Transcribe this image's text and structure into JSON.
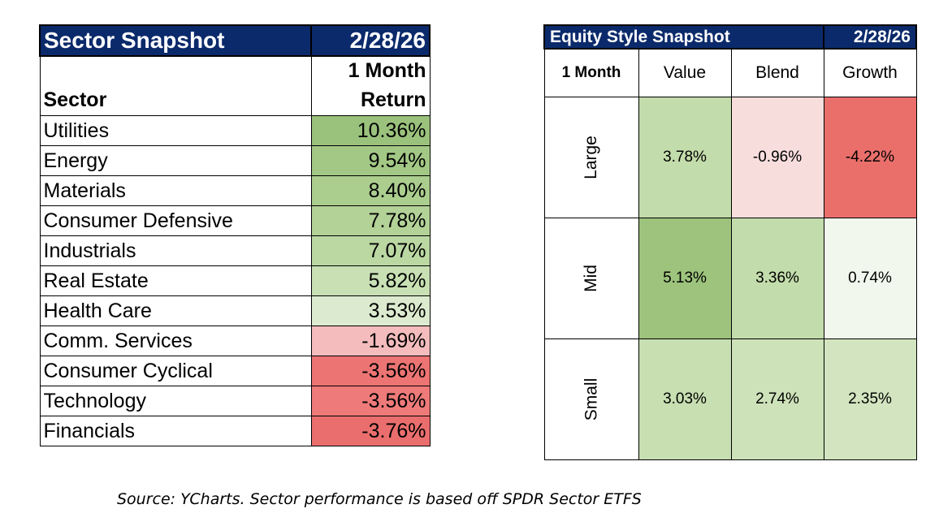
{
  "sector_snapshot": {
    "title": "Sector Snapshot",
    "date": "2/28/26",
    "header_col1": "Sector",
    "header_col2_line1": "1 Month",
    "header_col2_line2": "Return",
    "rows": [
      {
        "sector": "Utilities",
        "return": "10.36%",
        "color": "#9bc27c"
      },
      {
        "sector": "Energy",
        "return": "9.54%",
        "color": "#a3c885"
      },
      {
        "sector": "Materials",
        "return": "8.40%",
        "color": "#abcd8e"
      },
      {
        "sector": "Consumer Defensive",
        "return": "7.78%",
        "color": "#b3d298"
      },
      {
        "sector": "Industrials",
        "return": "7.07%",
        "color": "#bbd8a3"
      },
      {
        "sector": "Real Estate",
        "return": "5.82%",
        "color": "#c8e0b4"
      },
      {
        "sector": "Health Care",
        "return": "3.53%",
        "color": "#dcebcf"
      },
      {
        "sector": "Comm. Services",
        "return": "-1.69%",
        "color": "#f4bcbc"
      },
      {
        "sector": "Consumer Cyclical",
        "return": "-3.56%",
        "color": "#ec7473"
      },
      {
        "sector": "Technology",
        "return": "-3.56%",
        "color": "#ee7a79"
      },
      {
        "sector": "Financials",
        "return": "-3.76%",
        "color": "#ea6e6d"
      }
    ]
  },
  "equity_style_snapshot": {
    "title": "Equity Style Snapshot",
    "date": "2/28/26",
    "corner_label": "1 Month",
    "columns": [
      "Value",
      "Blend",
      "Growth"
    ],
    "rows": [
      {
        "label": "Large",
        "cells": [
          {
            "value": "3.78%",
            "color": "#c3dcab"
          },
          {
            "value": "-0.96%",
            "color": "#f8dddd"
          },
          {
            "value": "-4.22%",
            "color": "#ea6f6b"
          }
        ]
      },
      {
        "label": "Mid",
        "cells": [
          {
            "value": "5.13%",
            "color": "#9dc37c"
          },
          {
            "value": "3.36%",
            "color": "#c3dcab"
          },
          {
            "value": "0.74%",
            "color": "#f1f7ec"
          }
        ]
      },
      {
        "label": "Small",
        "cells": [
          {
            "value": "3.03%",
            "color": "#c7dfb1"
          },
          {
            "value": "2.74%",
            "color": "#cde2b9"
          },
          {
            "value": "2.35%",
            "color": "#d2e5c0"
          }
        ]
      }
    ]
  },
  "source_note": "Source: YCharts. Sector performance is based off SPDR Sector ETFS"
}
